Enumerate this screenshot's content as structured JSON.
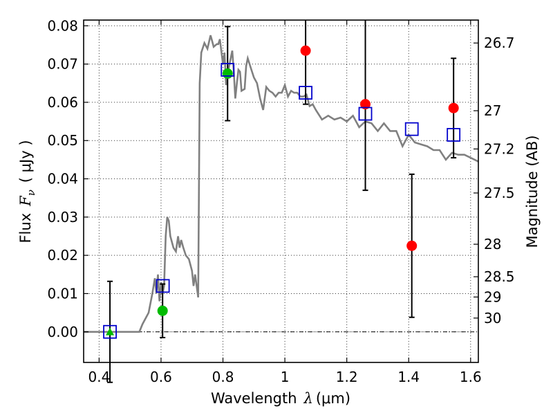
{
  "chart_data": {
    "type": "scatter",
    "xlabel_prefix": "Wavelength",
    "xlabel_symbol": "λ",
    "xlabel_unit": "(μm)",
    "ylabel_prefix": "Flux",
    "ylabel_symbol": "F",
    "ylabel_subscript": "ν",
    "ylabel_unit": "( μJy )",
    "y2label": "Magnitude (AB)",
    "xlim": [
      0.35,
      1.625
    ],
    "ylim": [
      -0.008,
      0.0815
    ],
    "x_ticks": [
      0.4,
      0.6,
      0.8,
      1.0,
      1.2,
      1.4,
      1.6
    ],
    "x_tick_labels": [
      "0.4",
      "0.6",
      "0.8",
      "1",
      "1.2",
      "1.4",
      "1.6"
    ],
    "y_ticks": [
      0.0,
      0.01,
      0.02,
      0.03,
      0.04,
      0.05,
      0.06,
      0.07,
      0.08
    ],
    "y_tick_labels": [
      "0.00",
      "0.01",
      "0.02",
      "0.03",
      "0.04",
      "0.05",
      "0.06",
      "0.07",
      "0.08"
    ],
    "y2_ticks": [
      {
        "label": "26.7",
        "flux": 0.0755
      },
      {
        "label": "27",
        "flux": 0.0578
      },
      {
        "label": "27.2",
        "flux": 0.0478
      },
      {
        "label": "27.5",
        "flux": 0.0363
      },
      {
        "label": "28",
        "flux": 0.0229
      },
      {
        "label": "28.5",
        "flux": 0.0144
      },
      {
        "label": "29",
        "flux": 0.0091
      },
      {
        "label": "30",
        "flux": 0.0036
      }
    ],
    "grid": true,
    "colors": {
      "model": "#808080",
      "observed": "#ff0000",
      "detected_green": "#00bb00",
      "model_flux_box": "#0000cc",
      "errorbar": "#000000"
    },
    "model_sed": {
      "x": [
        0.35,
        0.53,
        0.54,
        0.56,
        0.572,
        0.58,
        0.585,
        0.59,
        0.595,
        0.6,
        0.605,
        0.61,
        0.615,
        0.62,
        0.625,
        0.63,
        0.64,
        0.648,
        0.655,
        0.66,
        0.665,
        0.672,
        0.68,
        0.69,
        0.7,
        0.705,
        0.71,
        0.715,
        0.72,
        0.725,
        0.73,
        0.74,
        0.75,
        0.76,
        0.765,
        0.77,
        0.78,
        0.785,
        0.79,
        0.8,
        0.805,
        0.81,
        0.82,
        0.83,
        0.835,
        0.84,
        0.845,
        0.85,
        0.855,
        0.86,
        0.87,
        0.875,
        0.88,
        0.89,
        0.9,
        0.91,
        0.92,
        0.93,
        0.94,
        0.95,
        0.96,
        0.97,
        0.98,
        0.99,
        1.0,
        1.01,
        1.02,
        1.03,
        1.04,
        1.05,
        1.06,
        1.07,
        1.08,
        1.09,
        1.1,
        1.12,
        1.14,
        1.16,
        1.18,
        1.2,
        1.22,
        1.24,
        1.26,
        1.28,
        1.3,
        1.32,
        1.34,
        1.36,
        1.38,
        1.4,
        1.42,
        1.44,
        1.46,
        1.48,
        1.5,
        1.52,
        1.54,
        1.56,
        1.58,
        1.6,
        1.625
      ],
      "y": [
        0.0,
        0.0,
        0.002,
        0.005,
        0.01,
        0.014,
        0.01,
        0.015,
        0.008,
        0.013,
        0.01,
        0.012,
        0.025,
        0.03,
        0.029,
        0.025,
        0.022,
        0.021,
        0.025,
        0.022,
        0.024,
        0.022,
        0.02,
        0.019,
        0.016,
        0.012,
        0.015,
        0.012,
        0.009,
        0.065,
        0.073,
        0.0755,
        0.074,
        0.0775,
        0.076,
        0.0745,
        0.0752,
        0.0752,
        0.0765,
        0.07,
        0.073,
        0.0645,
        0.0695,
        0.0735,
        0.068,
        0.061,
        0.065,
        0.0685,
        0.068,
        0.063,
        0.0635,
        0.0695,
        0.0715,
        0.069,
        0.0665,
        0.065,
        0.061,
        0.058,
        0.064,
        0.063,
        0.0625,
        0.0615,
        0.0625,
        0.0625,
        0.0645,
        0.0615,
        0.063,
        0.0625,
        0.0625,
        0.0615,
        0.0615,
        0.062,
        0.059,
        0.0595,
        0.058,
        0.0555,
        0.0565,
        0.0555,
        0.056,
        0.055,
        0.0565,
        0.0535,
        0.055,
        0.0545,
        0.0525,
        0.0545,
        0.0525,
        0.0525,
        0.0485,
        0.0515,
        0.0495,
        0.049,
        0.0485,
        0.0475,
        0.0475,
        0.045,
        0.0468,
        0.0463,
        0.0463,
        0.0455,
        0.0445
      ]
    },
    "observed_red": [
      {
        "x": 1.067,
        "y": 0.0735,
        "err": 0.014
      },
      {
        "x": 1.26,
        "y": 0.0595,
        "err": 0.0225
      },
      {
        "x": 1.41,
        "y": 0.0225,
        "err": 0.0187
      },
      {
        "x": 1.545,
        "y": 0.0585,
        "err": 0.013
      }
    ],
    "detected_green": [
      {
        "x": 0.605,
        "y": 0.0055,
        "err": 0.007
      },
      {
        "x": 0.815,
        "y": 0.0675,
        "err": 0.0123
      }
    ],
    "upper_limit_green": [
      {
        "x": 0.435,
        "y": 0.0,
        "err": 0.0132
      }
    ],
    "model_flux_boxes": [
      {
        "x": 0.435,
        "y": 0.0
      },
      {
        "x": 0.606,
        "y": 0.012
      },
      {
        "x": 0.815,
        "y": 0.0685
      },
      {
        "x": 1.067,
        "y": 0.0625
      },
      {
        "x": 1.26,
        "y": 0.057
      },
      {
        "x": 1.41,
        "y": 0.053
      },
      {
        "x": 1.545,
        "y": 0.0515
      }
    ]
  }
}
